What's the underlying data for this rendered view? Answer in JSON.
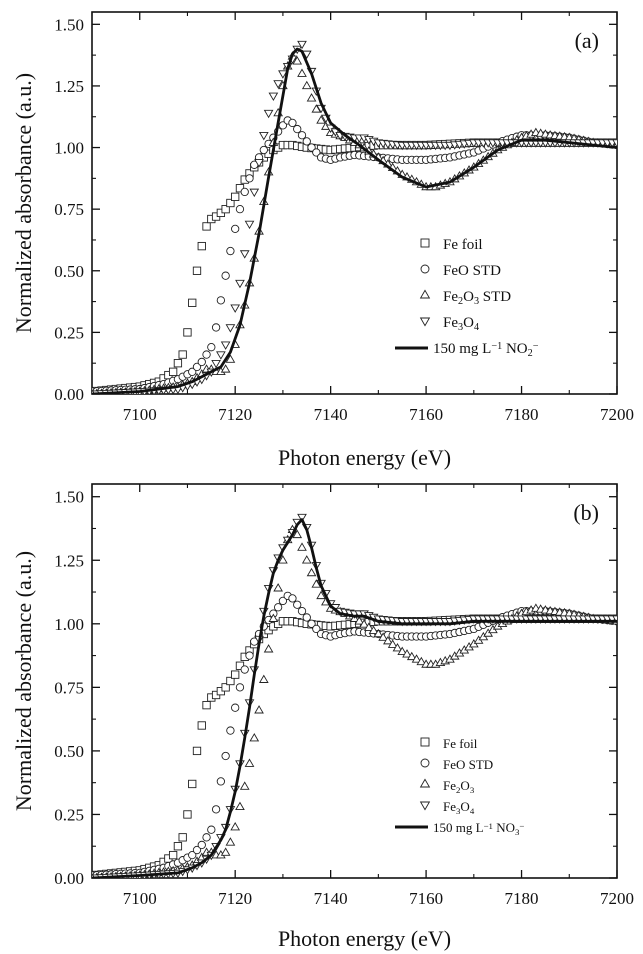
{
  "chart_data": [
    {
      "type": "line",
      "panel_label": "(a)",
      "xlabel": "Photon energy (eV)",
      "ylabel": "Normalized absorbance (a.u.)",
      "xlim": [
        7090,
        7200
      ],
      "ylim": [
        0,
        1.55
      ],
      "xticks": [
        "7100",
        "7120",
        "7140",
        "7160",
        "7180",
        "7200"
      ],
      "yticks": [
        "0.00",
        "0.25",
        "0.50",
        "0.75",
        "1.00",
        "1.25",
        "1.50"
      ],
      "grid": false,
      "legend_position": "middle-right",
      "legend": [
        {
          "marker": "square",
          "label": "Fe foil"
        },
        {
          "marker": "circle",
          "label": "FeO STD"
        },
        {
          "marker": "triangle-up",
          "label": "Fe₂O₃ STD"
        },
        {
          "marker": "triangle-down",
          "label": "Fe₃O₄"
        },
        {
          "marker": "line",
          "label": "150 mg L⁻¹ NO₂⁻"
        }
      ],
      "series": [
        {
          "name": "Fe foil",
          "marker": "square",
          "x": [
            7090,
            7095,
            7100,
            7104,
            7107,
            7109,
            7110,
            7111,
            7112,
            7113,
            7114,
            7115,
            7116,
            7118,
            7120,
            7122,
            7124,
            7126,
            7128,
            7130,
            7132,
            7135,
            7140,
            7145,
            7150,
            7160,
            7170,
            7180,
            7190,
            7200
          ],
          "y": [
            0.01,
            0.02,
            0.03,
            0.05,
            0.09,
            0.16,
            0.25,
            0.37,
            0.5,
            0.6,
            0.68,
            0.71,
            0.72,
            0.75,
            0.8,
            0.87,
            0.92,
            0.96,
            0.99,
            1.01,
            1.01,
            1.0,
            0.99,
            1.0,
            1.01,
            1.01,
            1.02,
            1.02,
            1.02,
            1.02
          ]
        },
        {
          "name": "FeO STD",
          "marker": "circle",
          "x": [
            7090,
            7100,
            7105,
            7108,
            7111,
            7113,
            7115,
            7116,
            7117,
            7118,
            7119,
            7120,
            7121,
            7122,
            7124,
            7126,
            7128,
            7130,
            7131,
            7132,
            7134,
            7136,
            7138,
            7140,
            7142,
            7145,
            7150,
            7155,
            7160,
            7165,
            7170,
            7175,
            7180,
            7185,
            7190,
            7195,
            7200
          ],
          "y": [
            0.01,
            0.02,
            0.04,
            0.06,
            0.09,
            0.13,
            0.19,
            0.27,
            0.38,
            0.48,
            0.58,
            0.67,
            0.75,
            0.82,
            0.93,
            0.99,
            1.04,
            1.09,
            1.11,
            1.1,
            1.05,
            1.0,
            0.96,
            0.95,
            0.96,
            0.97,
            0.96,
            0.95,
            0.95,
            0.96,
            0.98,
            1.02,
            1.05,
            1.05,
            1.04,
            1.02,
            1.01
          ]
        },
        {
          "name": "Fe₂O₃ STD",
          "marker": "triangle-up",
          "x": [
            7090,
            7100,
            7108,
            7111,
            7113,
            7114,
            7115,
            7116,
            7117,
            7118,
            7119,
            7120,
            7121,
            7122,
            7123,
            7124,
            7125,
            7126,
            7127,
            7128,
            7129,
            7130,
            7131,
            7132,
            7133,
            7134,
            7136,
            7138,
            7140,
            7143,
            7146,
            7150,
            7155,
            7160,
            7162,
            7165,
            7170,
            7175,
            7180,
            7183,
            7186,
            7190,
            7195,
            7200
          ],
          "y": [
            0.0,
            0.01,
            0.03,
            0.05,
            0.08,
            0.1,
            0.1,
            0.09,
            0.09,
            0.1,
            0.14,
            0.2,
            0.28,
            0.36,
            0.45,
            0.55,
            0.66,
            0.78,
            0.9,
            1.02,
            1.14,
            1.25,
            1.33,
            1.37,
            1.35,
            1.3,
            1.2,
            1.11,
            1.06,
            1.04,
            1.01,
            0.96,
            0.89,
            0.84,
            0.84,
            0.86,
            0.92,
            0.99,
            1.04,
            1.06,
            1.05,
            1.04,
            1.02,
            1.01
          ]
        },
        {
          "name": "Fe₃O₄",
          "marker": "triangle-down",
          "x": [
            7090,
            7100,
            7108,
            7111,
            7113,
            7115,
            7117,
            7118,
            7119,
            7120,
            7121,
            7122,
            7123,
            7124,
            7125,
            7126,
            7127,
            7128,
            7129,
            7130,
            7131,
            7132,
            7133,
            7134,
            7135,
            7136,
            7137,
            7138,
            7140,
            7142,
            7145,
            7147,
            7150,
            7155,
            7160,
            7165,
            7170,
            7175,
            7180,
            7190,
            7200
          ],
          "y": [
            0.0,
            0.01,
            0.02,
            0.04,
            0.06,
            0.09,
            0.16,
            0.2,
            0.27,
            0.35,
            0.45,
            0.57,
            0.69,
            0.82,
            0.94,
            1.05,
            1.14,
            1.21,
            1.26,
            1.3,
            1.33,
            1.36,
            1.4,
            1.42,
            1.38,
            1.31,
            1.23,
            1.16,
            1.08,
            1.05,
            1.04,
            1.04,
            1.02,
            1.01,
            1.01,
            1.01,
            1.02,
            1.02,
            1.02,
            1.02,
            1.02
          ]
        },
        {
          "name": "150 mg L⁻¹ NO₂⁻",
          "marker": "line",
          "x": [
            7090,
            7100,
            7108,
            7111,
            7113,
            7115,
            7117,
            7119,
            7121,
            7123,
            7125,
            7127,
            7129,
            7131,
            7132,
            7133,
            7134,
            7136,
            7138,
            7140,
            7143,
            7146,
            7150,
            7155,
            7160,
            7165,
            7170,
            7175,
            7180,
            7185,
            7190,
            7195,
            7200
          ],
          "y": [
            0.0,
            0.01,
            0.03,
            0.05,
            0.07,
            0.09,
            0.11,
            0.17,
            0.28,
            0.45,
            0.65,
            0.88,
            1.1,
            1.32,
            1.38,
            1.4,
            1.39,
            1.3,
            1.18,
            1.1,
            1.05,
            1.01,
            0.95,
            0.88,
            0.84,
            0.86,
            0.92,
            0.99,
            1.03,
            1.03,
            1.02,
            1.01,
            1.0
          ]
        }
      ]
    },
    {
      "type": "line",
      "panel_label": "(b)",
      "xlabel": "Photon energy (eV)",
      "ylabel": "Normalized absorbance (a.u.)",
      "xlim": [
        7090,
        7200
      ],
      "ylim": [
        0,
        1.55
      ],
      "xticks": [
        "7100",
        "7120",
        "7140",
        "7160",
        "7180",
        "7200"
      ],
      "yticks": [
        "0.00",
        "0.25",
        "0.50",
        "0.75",
        "1.00",
        "1.25",
        "1.50"
      ],
      "grid": false,
      "legend_position": "middle-right",
      "legend": [
        {
          "marker": "square",
          "label": "Fe foil"
        },
        {
          "marker": "circle",
          "label": "FeO STD"
        },
        {
          "marker": "triangle-up",
          "label": "Fe₂O₃"
        },
        {
          "marker": "triangle-down",
          "label": "Fe₃O₄"
        },
        {
          "marker": "line",
          "label": "150 mg L⁻¹ NO₃⁻"
        }
      ],
      "series": [
        {
          "name": "Fe foil",
          "marker": "square",
          "x": [
            7090,
            7095,
            7100,
            7104,
            7107,
            7109,
            7110,
            7111,
            7112,
            7113,
            7114,
            7115,
            7116,
            7118,
            7120,
            7122,
            7124,
            7126,
            7128,
            7130,
            7132,
            7135,
            7140,
            7145,
            7150,
            7160,
            7170,
            7180,
            7190,
            7200
          ],
          "y": [
            0.01,
            0.02,
            0.03,
            0.05,
            0.09,
            0.16,
            0.25,
            0.37,
            0.5,
            0.6,
            0.68,
            0.71,
            0.72,
            0.75,
            0.8,
            0.87,
            0.92,
            0.96,
            0.99,
            1.01,
            1.01,
            1.0,
            0.99,
            1.0,
            1.01,
            1.01,
            1.02,
            1.02,
            1.02,
            1.02
          ]
        },
        {
          "name": "FeO STD",
          "marker": "circle",
          "x": [
            7090,
            7100,
            7105,
            7108,
            7111,
            7113,
            7115,
            7116,
            7117,
            7118,
            7119,
            7120,
            7121,
            7122,
            7124,
            7126,
            7128,
            7130,
            7131,
            7132,
            7134,
            7136,
            7138,
            7140,
            7142,
            7145,
            7150,
            7155,
            7160,
            7165,
            7170,
            7175,
            7180,
            7185,
            7190,
            7195,
            7200
          ],
          "y": [
            0.01,
            0.02,
            0.04,
            0.06,
            0.09,
            0.13,
            0.19,
            0.27,
            0.38,
            0.48,
            0.58,
            0.67,
            0.75,
            0.82,
            0.93,
            0.99,
            1.04,
            1.09,
            1.11,
            1.1,
            1.05,
            1.0,
            0.96,
            0.95,
            0.96,
            0.97,
            0.96,
            0.95,
            0.95,
            0.96,
            0.98,
            1.02,
            1.05,
            1.05,
            1.04,
            1.02,
            1.01
          ]
        },
        {
          "name": "Fe₂O₃",
          "marker": "triangle-up",
          "x": [
            7090,
            7100,
            7108,
            7111,
            7113,
            7114,
            7115,
            7116,
            7117,
            7118,
            7119,
            7120,
            7121,
            7122,
            7123,
            7124,
            7125,
            7126,
            7127,
            7128,
            7129,
            7130,
            7131,
            7132,
            7133,
            7134,
            7136,
            7138,
            7140,
            7143,
            7146,
            7150,
            7155,
            7160,
            7162,
            7165,
            7170,
            7175,
            7180,
            7183,
            7186,
            7190,
            7195,
            7200
          ],
          "y": [
            0.0,
            0.01,
            0.03,
            0.05,
            0.08,
            0.1,
            0.1,
            0.09,
            0.09,
            0.1,
            0.14,
            0.2,
            0.28,
            0.36,
            0.45,
            0.55,
            0.66,
            0.78,
            0.9,
            1.02,
            1.14,
            1.25,
            1.33,
            1.37,
            1.35,
            1.3,
            1.2,
            1.11,
            1.06,
            1.04,
            1.01,
            0.96,
            0.89,
            0.84,
            0.84,
            0.86,
            0.92,
            0.99,
            1.04,
            1.06,
            1.05,
            1.04,
            1.02,
            1.01
          ]
        },
        {
          "name": "Fe₃O₄",
          "marker": "triangle-down",
          "x": [
            7090,
            7100,
            7108,
            7111,
            7113,
            7115,
            7117,
            7118,
            7119,
            7120,
            7121,
            7122,
            7123,
            7124,
            7125,
            7126,
            7127,
            7128,
            7129,
            7130,
            7131,
            7132,
            7133,
            7134,
            7135,
            7136,
            7137,
            7138,
            7140,
            7142,
            7145,
            7147,
            7150,
            7155,
            7160,
            7165,
            7170,
            7175,
            7180,
            7190,
            7200
          ],
          "y": [
            0.0,
            0.01,
            0.02,
            0.04,
            0.06,
            0.09,
            0.16,
            0.2,
            0.27,
            0.35,
            0.45,
            0.57,
            0.69,
            0.82,
            0.94,
            1.05,
            1.14,
            1.21,
            1.26,
            1.3,
            1.33,
            1.36,
            1.4,
            1.42,
            1.38,
            1.31,
            1.23,
            1.16,
            1.08,
            1.05,
            1.04,
            1.04,
            1.02,
            1.01,
            1.01,
            1.01,
            1.02,
            1.02,
            1.02,
            1.02,
            1.02
          ]
        },
        {
          "name": "150 mg L⁻¹ NO₃⁻",
          "marker": "line",
          "x": [
            7090,
            7100,
            7108,
            7111,
            7113,
            7115,
            7117,
            7118,
            7119,
            7120,
            7121,
            7122,
            7123,
            7124,
            7125,
            7126,
            7127,
            7128,
            7129,
            7130,
            7131,
            7132,
            7133,
            7134,
            7135,
            7136,
            7137,
            7138,
            7140,
            7142,
            7145,
            7147,
            7150,
            7155,
            7160,
            7165,
            7170,
            7175,
            7180,
            7190,
            7200
          ],
          "y": [
            0.0,
            0.01,
            0.02,
            0.04,
            0.06,
            0.09,
            0.15,
            0.19,
            0.26,
            0.34,
            0.44,
            0.55,
            0.67,
            0.8,
            0.92,
            1.03,
            1.12,
            1.2,
            1.25,
            1.29,
            1.32,
            1.35,
            1.39,
            1.41,
            1.37,
            1.3,
            1.22,
            1.15,
            1.07,
            1.04,
            1.03,
            1.03,
            1.01,
            1.0,
            1.0,
            1.0,
            1.01,
            1.01,
            1.01,
            1.01,
            1.01
          ]
        }
      ]
    }
  ]
}
